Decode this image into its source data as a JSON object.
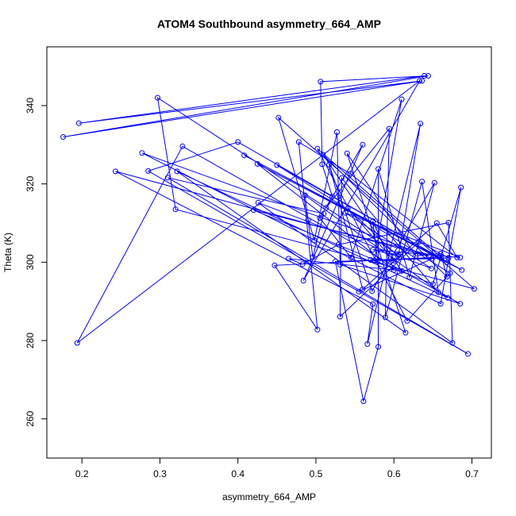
{
  "chart_data": {
    "type": "line",
    "title": "ATOM4 Southbound asymmetry_664_AMP",
    "xlabel": "asymmetry_664_AMP",
    "ylabel": "Theta (K)",
    "xlim": [
      0.155,
      0.725
    ],
    "ylim": [
      250,
      355
    ],
    "xticks": [
      0.2,
      0.3,
      0.4,
      0.5,
      0.6,
      0.7
    ],
    "yticks": [
      260,
      280,
      300,
      320,
      340
    ],
    "xtick_labels": [
      "0.2",
      "0.3",
      "0.4",
      "0.5",
      "0.6",
      "0.7"
    ],
    "ytick_labels": [
      "260",
      "280",
      "300",
      "320",
      "340"
    ],
    "grid": false,
    "legend": "none",
    "color": "#0000ff",
    "marker": "open-circle",
    "series": [
      {
        "points": [
          [
            0.639,
            347.6
          ],
          [
            0.196,
            335.5
          ],
          [
            0.636,
            346.3
          ],
          [
            0.176,
            332.0
          ],
          [
            0.644,
            347.6
          ],
          [
            0.506,
            346.1
          ],
          [
            0.508,
            325.0
          ],
          [
            0.521,
            316.8
          ],
          [
            0.505,
            311.3
          ],
          [
            0.545,
            301.2
          ],
          [
            0.61,
            341.6
          ],
          [
            0.575,
            300.4
          ],
          [
            0.65,
            294.4
          ],
          [
            0.686,
            319.1
          ],
          [
            0.66,
            289.4
          ],
          [
            0.277,
            327.9
          ],
          [
            0.645,
            301.5
          ],
          [
            0.243,
            323.2
          ],
          [
            0.573,
            289.3
          ],
          [
            0.566,
            279.1
          ],
          [
            0.634,
            335.4
          ],
          [
            0.606,
            301.9
          ],
          [
            0.297,
            342.0
          ],
          [
            0.32,
            313.5
          ],
          [
            0.703,
            293.2
          ],
          [
            0.452,
            336.9
          ],
          [
            0.498,
            305.6
          ],
          [
            0.527,
            333.2
          ],
          [
            0.531,
            299.4
          ],
          [
            0.685,
            289.4
          ],
          [
            0.329,
            329.6
          ],
          [
            0.194,
            279.4
          ],
          [
            0.633,
            346.3
          ],
          [
            0.484,
            295.3
          ],
          [
            0.56,
            330.0
          ],
          [
            0.513,
            313.9
          ],
          [
            0.594,
            334.1
          ],
          [
            0.589,
            285.9
          ],
          [
            0.636,
            320.6
          ],
          [
            0.657,
            292.3
          ],
          [
            0.533,
            321.5
          ],
          [
            0.531,
            286.1
          ],
          [
            0.632,
            305.2
          ],
          [
            0.67,
            301.1
          ],
          [
            0.525,
            300.2
          ],
          [
            0.561,
            264.5
          ],
          [
            0.58,
            278.4
          ],
          [
            0.58,
            323.8
          ],
          [
            0.62,
            296.2
          ],
          [
            0.652,
            320.3
          ],
          [
            0.572,
            292.6
          ],
          [
            0.517,
            324.9
          ],
          [
            0.56,
            293.1
          ],
          [
            0.655,
            310.0
          ],
          [
            0.681,
            301.2
          ],
          [
            0.544,
            322.6
          ],
          [
            0.478,
            330.7
          ],
          [
            0.502,
            282.8
          ],
          [
            0.447,
            299.2
          ],
          [
            0.658,
            301.3
          ],
          [
            0.42,
            313.3
          ],
          [
            0.579,
            300.3
          ],
          [
            0.573,
            310.5
          ],
          [
            0.6,
            298.0
          ],
          [
            0.425,
            325.1
          ],
          [
            0.687,
            298.0
          ],
          [
            0.45,
            324.8
          ],
          [
            0.672,
            297.2
          ],
          [
            0.617,
            285.0
          ],
          [
            0.502,
            329.0
          ],
          [
            0.668,
            299.9
          ],
          [
            0.408,
            327.3
          ],
          [
            0.661,
            300.9
          ],
          [
            0.4,
            330.7
          ],
          [
            0.285,
            323.3
          ],
          [
            0.695,
            276.6
          ],
          [
            0.31,
            321.6
          ],
          [
            0.51,
            312.4
          ],
          [
            0.496,
            301.3
          ],
          [
            0.49,
            310.8
          ],
          [
            0.486,
            317.1
          ],
          [
            0.669,
            290.9
          ],
          [
            0.322,
            323.2
          ],
          [
            0.615,
            282.0
          ],
          [
            0.54,
            327.8
          ],
          [
            0.628,
            301.6
          ],
          [
            0.66,
            302.2
          ],
          [
            0.668,
            296.3
          ],
          [
            0.509,
            327.5
          ],
          [
            0.61,
            297.8
          ],
          [
            0.465,
            300.9
          ],
          [
            0.483,
            299.5
          ],
          [
            0.529,
            304.5
          ],
          [
            0.67,
            310.1
          ],
          [
            0.675,
            279.4
          ],
          [
            0.426,
            315.2
          ],
          [
            0.648,
            298.4
          ],
          [
            0.538,
            312.6
          ],
          [
            0.685,
            301.2
          ],
          [
            0.573,
            303.2
          ],
          [
            0.605,
            301.6
          ],
          [
            0.541,
            313.7
          ],
          [
            0.6,
            300.4
          ],
          [
            0.57,
            300.6
          ],
          [
            0.649,
            300.9
          ],
          [
            0.555,
            292.5
          ]
        ]
      }
    ]
  }
}
